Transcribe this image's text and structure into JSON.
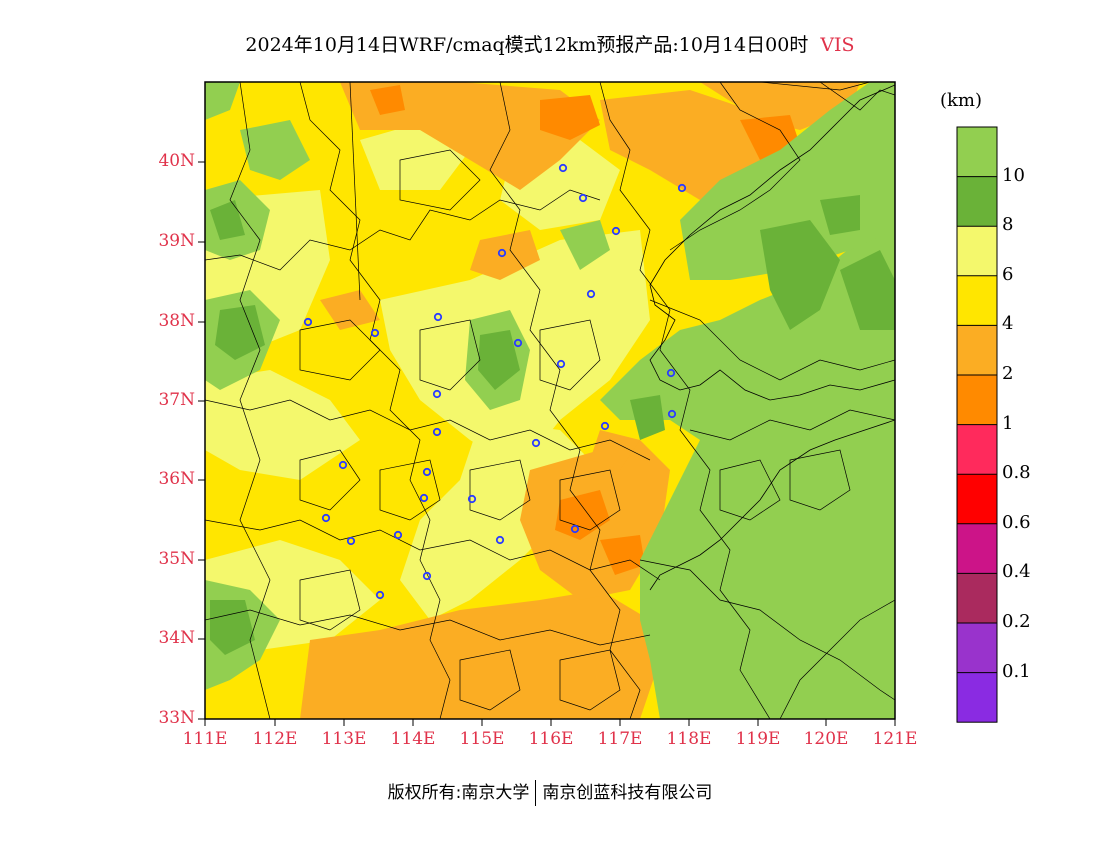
{
  "title": "2024年10月14日WRF/cmaq模式12km预报产品:10月14日00时",
  "variable": "VIS",
  "unit": "(km)",
  "lat_labels": [
    "40N",
    "39N",
    "38N",
    "37N",
    "36N",
    "35N",
    "34N",
    "33N"
  ],
  "lon_labels": [
    "111E",
    "112E",
    "113E",
    "114E",
    "115E",
    "116E",
    "117E",
    "118E",
    "119E",
    "120E",
    "121E"
  ],
  "colorbar": {
    "colors": [
      "#92cf50",
      "#6ab238",
      "#f4f86c",
      "#ffe600",
      "#fbad23",
      "#ff8a00",
      "#ff2a5c",
      "#ff0000",
      "#cc1488",
      "#aa2a5e",
      "#9933cc",
      "#8a2be2"
    ],
    "labels": [
      "10",
      "8",
      "6",
      "4",
      "2",
      "1",
      "0.8",
      "0.6",
      "0.4",
      "0.2",
      "0.1"
    ]
  },
  "footer": {
    "left": "版权所有:南京大学",
    "right": "南京创蓝科技有限公司"
  }
}
